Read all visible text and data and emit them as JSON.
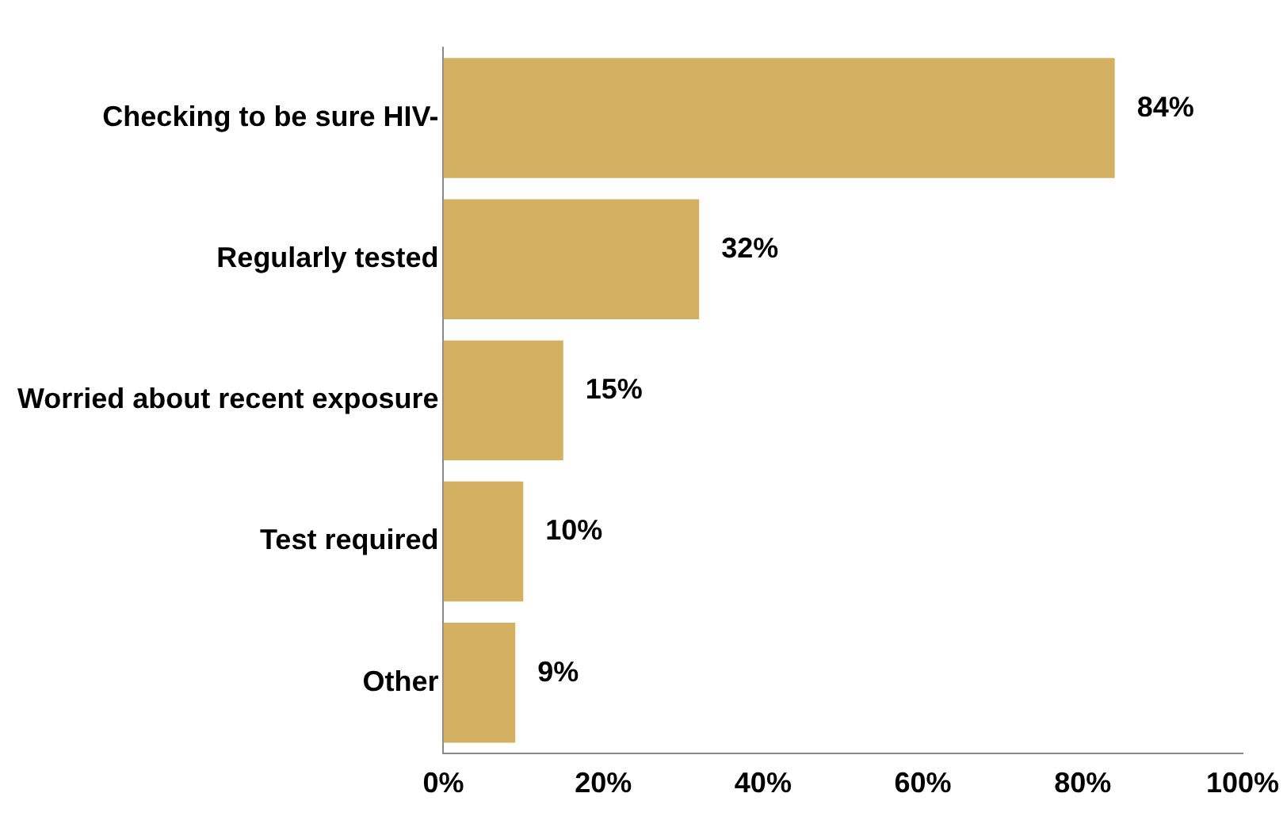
{
  "chart_data": {
    "type": "bar",
    "orientation": "horizontal",
    "categories": [
      "Checking to be sure HIV-",
      "Regularly tested",
      "Worried about recent exposure",
      "Test required",
      "Other"
    ],
    "values": [
      84,
      32,
      15,
      10,
      9
    ],
    "value_labels": [
      "84%",
      "32%",
      "15%",
      "10%",
      "9%"
    ],
    "color": "#d4b062",
    "xlim": [
      0,
      100
    ],
    "xticks": [
      {
        "value": 0,
        "label": "0%"
      },
      {
        "value": 20,
        "label": "20%"
      },
      {
        "value": 40,
        "label": "40%"
      },
      {
        "value": 60,
        "label": "60%"
      },
      {
        "value": 80,
        "label": "80%"
      },
      {
        "value": 100,
        "label": "100%"
      }
    ],
    "grid": false,
    "legend": false
  }
}
